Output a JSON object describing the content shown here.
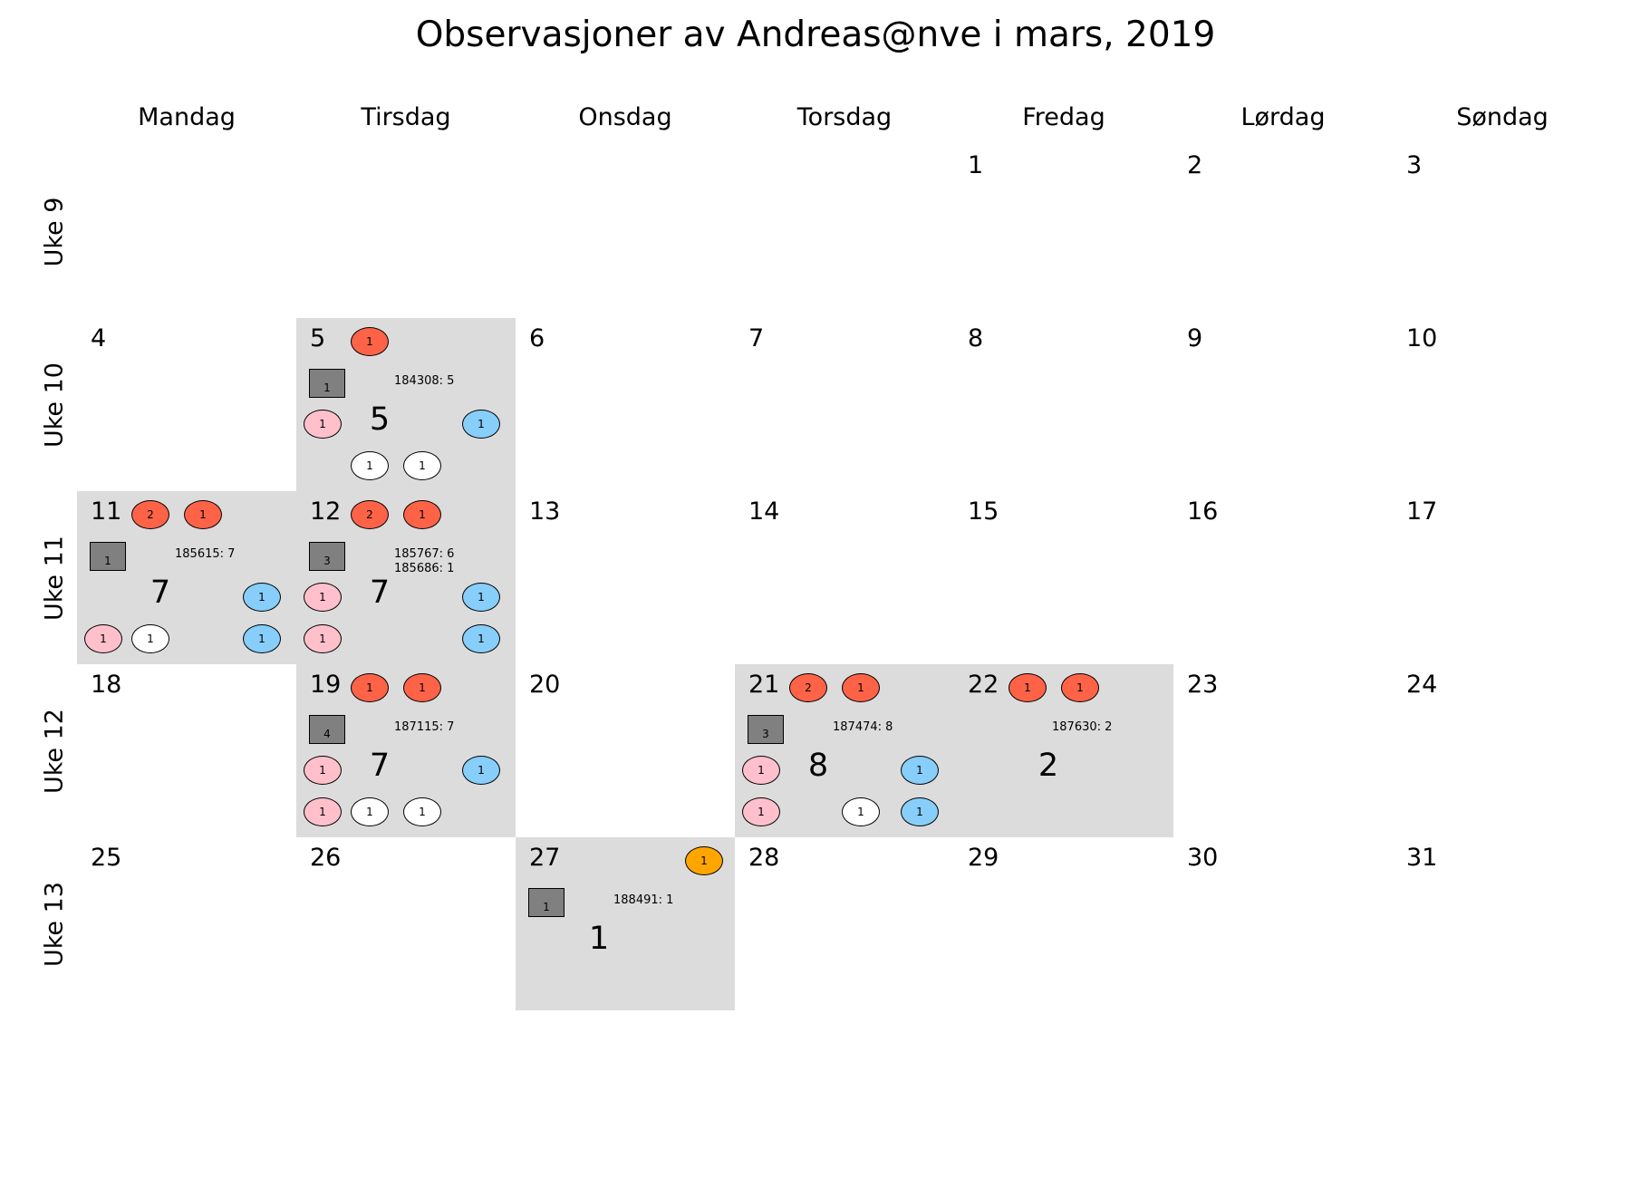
{
  "title": "Observasjoner av Andreas@nve i mars, 2019",
  "colors": {
    "active_cell": "#dcdcdc",
    "red": "#ff6347",
    "pink": "#ffc0cb",
    "blue": "#87cefa",
    "white": "#ffffff",
    "orange": "#ffa500",
    "square": "#808080"
  },
  "chart_data": {
    "type": "calendar-heatmap",
    "month": "mars",
    "year": 2019,
    "weekdays": [
      "Mandag",
      "Tirsdag",
      "Onsdag",
      "Torsdag",
      "Fredag",
      "Lørdag",
      "Søndag"
    ],
    "weeks": [
      {
        "label": "Uke 9",
        "days": [
          "",
          "",
          "",
          "",
          "1",
          "2",
          "3"
        ]
      },
      {
        "label": "Uke 10",
        "days": [
          "4",
          "5",
          "6",
          "7",
          "8",
          "9",
          "10"
        ]
      },
      {
        "label": "Uke 11",
        "days": [
          "11",
          "12",
          "13",
          "14",
          "15",
          "16",
          "17"
        ]
      },
      {
        "label": "Uke 12",
        "days": [
          "18",
          "19",
          "20",
          "21",
          "22",
          "23",
          "24"
        ]
      },
      {
        "label": "Uke 13",
        "days": [
          "25",
          "26",
          "27",
          "28",
          "29",
          "30",
          "31"
        ]
      }
    ],
    "active_days": [
      {
        "week": 1,
        "weekday": 1,
        "total": "5",
        "square": "1",
        "obs": [
          "184308: 5"
        ],
        "bubbles": [
          {
            "slot": "top1",
            "color": "red",
            "value": "1"
          },
          {
            "slot": "midL",
            "color": "pink",
            "value": "1"
          },
          {
            "slot": "midR",
            "color": "blue",
            "value": "1"
          },
          {
            "slot": "bot2",
            "color": "white",
            "value": "1"
          },
          {
            "slot": "bot3",
            "color": "white",
            "value": "1"
          }
        ]
      },
      {
        "week": 2,
        "weekday": 0,
        "total": "7",
        "square": "1",
        "obs": [
          "185615: 7"
        ],
        "bubbles": [
          {
            "slot": "top1",
            "color": "red",
            "value": "2"
          },
          {
            "slot": "top2",
            "color": "red",
            "value": "1"
          },
          {
            "slot": "midR",
            "color": "blue",
            "value": "1"
          },
          {
            "slot": "bot1",
            "color": "pink",
            "value": "1"
          },
          {
            "slot": "bot2",
            "color": "white",
            "value": "1"
          },
          {
            "slot": "bot4",
            "color": "blue",
            "value": "1"
          }
        ]
      },
      {
        "week": 2,
        "weekday": 1,
        "total": "7",
        "square": "3",
        "obs": [
          "185767: 6",
          "185686: 1"
        ],
        "bubbles": [
          {
            "slot": "top1",
            "color": "red",
            "value": "2"
          },
          {
            "slot": "top2",
            "color": "red",
            "value": "1"
          },
          {
            "slot": "midL",
            "color": "pink",
            "value": "1"
          },
          {
            "slot": "midR",
            "color": "blue",
            "value": "1"
          },
          {
            "slot": "bot1",
            "color": "pink",
            "value": "1"
          },
          {
            "slot": "bot4",
            "color": "blue",
            "value": "1"
          }
        ]
      },
      {
        "week": 3,
        "weekday": 1,
        "total": "7",
        "square": "4",
        "obs": [
          "187115: 7"
        ],
        "bubbles": [
          {
            "slot": "top1",
            "color": "red",
            "value": "1"
          },
          {
            "slot": "top2",
            "color": "red",
            "value": "1"
          },
          {
            "slot": "midL",
            "color": "pink",
            "value": "1"
          },
          {
            "slot": "midR",
            "color": "blue",
            "value": "1"
          },
          {
            "slot": "bot1",
            "color": "pink",
            "value": "1"
          },
          {
            "slot": "bot2",
            "color": "white",
            "value": "1"
          },
          {
            "slot": "bot3",
            "color": "white",
            "value": "1"
          }
        ]
      },
      {
        "week": 3,
        "weekday": 3,
        "total": "8",
        "square": "3",
        "obs": [
          "187474: 8"
        ],
        "bubbles": [
          {
            "slot": "top1",
            "color": "red",
            "value": "2"
          },
          {
            "slot": "top2",
            "color": "red",
            "value": "1"
          },
          {
            "slot": "midL",
            "color": "pink",
            "value": "1"
          },
          {
            "slot": "midR",
            "color": "blue",
            "value": "1"
          },
          {
            "slot": "bot1",
            "color": "pink",
            "value": "1"
          },
          {
            "slot": "bot3",
            "color": "white",
            "value": "1"
          },
          {
            "slot": "bot4",
            "color": "blue",
            "value": "1"
          }
        ]
      },
      {
        "week": 3,
        "weekday": 4,
        "total": "2",
        "square": "",
        "obs": [
          "187630: 2"
        ],
        "bubbles": [
          {
            "slot": "top1",
            "color": "red",
            "value": "1"
          },
          {
            "slot": "top2",
            "color": "red",
            "value": "1"
          }
        ]
      },
      {
        "week": 4,
        "weekday": 2,
        "total": "1",
        "square": "1",
        "obs": [
          "188491: 1"
        ],
        "bubbles": [
          {
            "slot": "topR",
            "color": "orange",
            "value": "1"
          }
        ]
      }
    ]
  }
}
